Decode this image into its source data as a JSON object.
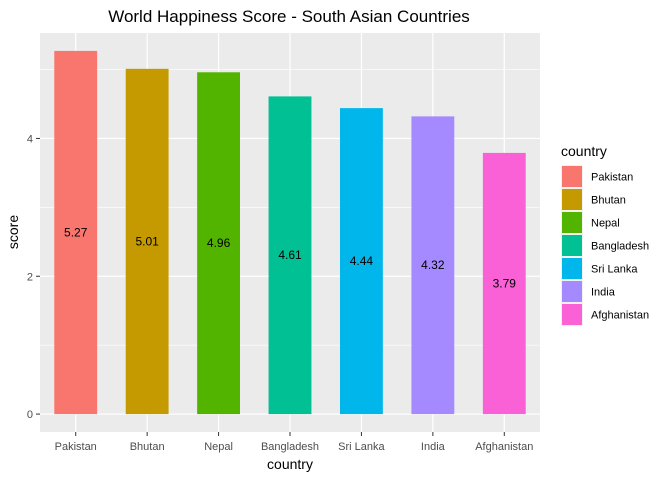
{
  "chart_data": {
    "type": "bar",
    "title": "World Happiness Score - South Asian Countries",
    "xlabel": "country",
    "ylabel": "score",
    "categories": [
      "Pakistan",
      "Bhutan",
      "Nepal",
      "Bangladesh",
      "Sri Lanka",
      "India",
      "Afghanistan"
    ],
    "values": [
      5.27,
      5.01,
      4.96,
      4.61,
      4.44,
      4.32,
      3.79
    ],
    "data_labels": [
      "5.27",
      "5.01",
      "4.96",
      "4.61",
      "4.44",
      "4.32",
      "3.79"
    ],
    "colors": [
      "#F8766D",
      "#C49A00",
      "#53B400",
      "#00C094",
      "#00B6EB",
      "#A58AFF",
      "#FB61D7"
    ],
    "ylim": [
      -0.26,
      5.53
    ],
    "yticks": [
      0,
      2,
      4
    ],
    "grid": true,
    "panel_background": "#EBEBEB",
    "legend": {
      "title": "country",
      "position": "right",
      "entries": [
        "Pakistan",
        "Bhutan",
        "Nepal",
        "Bangladesh",
        "Sri Lanka",
        "India",
        "Afghanistan"
      ]
    }
  }
}
